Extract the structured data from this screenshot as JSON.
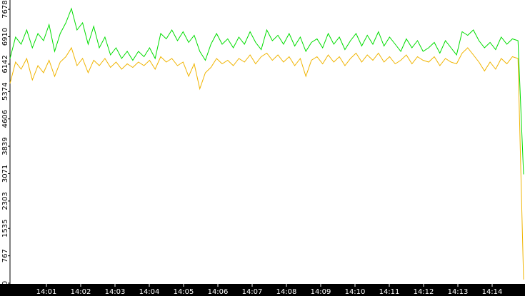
{
  "chart_data": {
    "type": "line",
    "xticks": [
      "14:01",
      "14:02",
      "14:03",
      "14:04",
      "14:05",
      "14:06",
      "14:07",
      "14:08",
      "14:09",
      "14:10",
      "14:11",
      "14:12",
      "14:13",
      "14:14"
    ],
    "ylim": [
      0,
      7940
    ],
    "yticks": [
      0,
      767,
      1535,
      2303,
      3071,
      3839,
      4606,
      5374,
      6142,
      6910,
      7678
    ],
    "series": [
      {
        "color": "#00dd00",
        "values": [
          6300,
          6900,
          6700,
          7100,
          6600,
          7000,
          6800,
          7250,
          6500,
          7000,
          7300,
          7700,
          7100,
          7300,
          6700,
          7200,
          6600,
          6900,
          6400,
          6600,
          6300,
          6500,
          6250,
          6500,
          6350,
          6600,
          6300,
          7000,
          6850,
          7100,
          6800,
          7050,
          6750,
          6950,
          6500,
          6250,
          6700,
          7000,
          6700,
          6850,
          6600,
          6900,
          6700,
          7050,
          6750,
          6550,
          7100,
          6800,
          6950,
          6700,
          7000,
          6650,
          6900,
          6500,
          6750,
          6850,
          6600,
          7000,
          6700,
          6900,
          6550,
          6800,
          7000,
          6650,
          6950,
          6700,
          7050,
          6650,
          6900,
          6700,
          6500,
          6850,
          6600,
          6800,
          6500,
          6600,
          6750,
          6450,
          6800,
          6600,
          6400,
          7050,
          6950,
          7100,
          6800,
          6600,
          6750,
          6550,
          6900,
          6700,
          6850,
          6800,
          3050
        ]
      },
      {
        "color": "#f0b400",
        "values": [
          5600,
          6200,
          6000,
          6300,
          5700,
          6100,
          5900,
          6250,
          5800,
          6200,
          6350,
          6600,
          6100,
          6300,
          5900,
          6250,
          6100,
          6300,
          6050,
          6200,
          6000,
          6150,
          6050,
          6200,
          6100,
          6250,
          6000,
          6350,
          6200,
          6300,
          6100,
          6200,
          5800,
          6150,
          5450,
          5900,
          6050,
          6300,
          6150,
          6250,
          6100,
          6300,
          6200,
          6400,
          6150,
          6350,
          6450,
          6250,
          6400,
          6200,
          6350,
          6100,
          6300,
          5800,
          6250,
          6350,
          6150,
          6400,
          6200,
          6350,
          6100,
          6300,
          6450,
          6200,
          6400,
          6250,
          6450,
          6200,
          6350,
          6150,
          6250,
          6400,
          6150,
          6350,
          6250,
          6200,
          6350,
          6100,
          6300,
          6200,
          6150,
          6450,
          6600,
          6400,
          6200,
          5950,
          6200,
          6000,
          6300,
          6150,
          6350,
          6300,
          100
        ]
      }
    ]
  }
}
